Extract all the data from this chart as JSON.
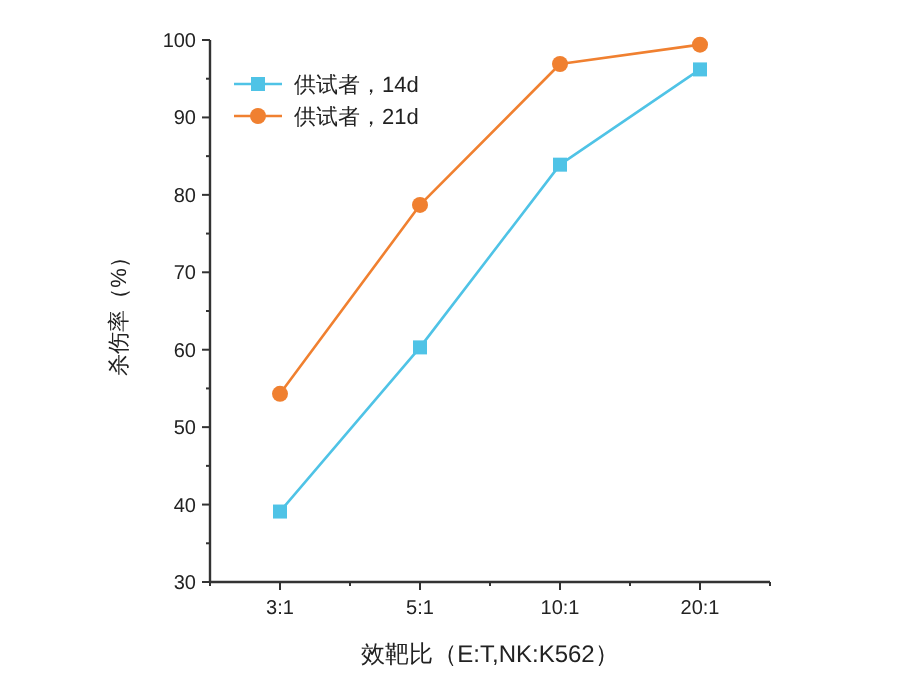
{
  "chart_data": {
    "type": "line",
    "xlabel": "效靶比（E:T,NK:K562）",
    "ylabel": "杀伤率（%）",
    "categories": [
      "3:1",
      "5:1",
      "10:1",
      "20:1"
    ],
    "series": [
      {
        "name": "供试者，14d",
        "color": "#4fc3e6",
        "marker": "square",
        "values": [
          39.1,
          60.3,
          83.9,
          96.2
        ]
      },
      {
        "name": "供试者，21d",
        "color": "#f08030",
        "marker": "circle",
        "values": [
          54.3,
          78.7,
          96.9,
          99.4
        ]
      }
    ],
    "ylim": [
      30,
      100
    ],
    "yticks": [
      30,
      40,
      50,
      60,
      70,
      80,
      90,
      100
    ],
    "legend": "top left",
    "grid": false,
    "line_style": "solid"
  }
}
